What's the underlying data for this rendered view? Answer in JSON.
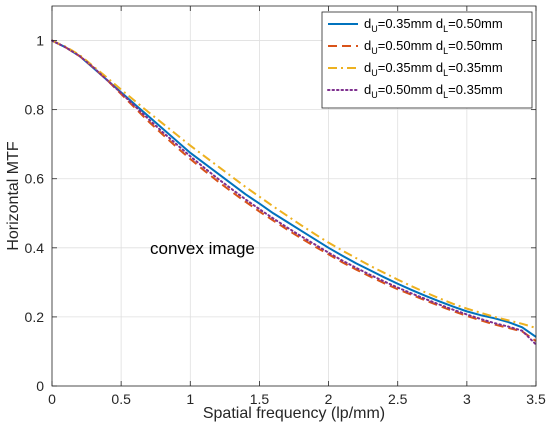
{
  "chart_data": {
    "type": "line",
    "title": "",
    "xlabel": "Spatial frequency (lp/mm)",
    "ylabel": "Horizontal MTF",
    "xlim": [
      0,
      3.5
    ],
    "ylim": [
      0,
      1.1
    ],
    "xticks": [
      "0",
      "0.5",
      "1",
      "1.5",
      "2",
      "2.5",
      "3",
      "3.5"
    ],
    "yticks": [
      "0",
      "0.2",
      "0.4",
      "0.6",
      "0.8",
      "1"
    ],
    "grid": true,
    "legend_position": "top-right",
    "annotation": "convex image",
    "x": [
      0,
      0.1,
      0.2,
      0.3,
      0.4,
      0.5,
      0.6,
      0.7,
      0.8,
      0.9,
      1.0,
      1.1,
      1.2,
      1.3,
      1.4,
      1.5,
      1.6,
      1.7,
      1.8,
      1.9,
      2.0,
      2.1,
      2.2,
      2.3,
      2.4,
      2.5,
      2.6,
      2.7,
      2.8,
      2.9,
      3.0,
      3.1,
      3.2,
      3.3,
      3.4,
      3.5
    ],
    "series": [
      {
        "name": "d_U=0.35mm d_L=0.50mm",
        "legend": {
          "d1": "d",
          "s1": "U",
          "mid": "=0.35mm d",
          "s2": "L",
          "end": "=0.50mm"
        },
        "color": "#0072BD",
        "dash": "solid",
        "values": [
          1.0,
          0.98,
          0.955,
          0.92,
          0.885,
          0.85,
          0.815,
          0.78,
          0.745,
          0.71,
          0.675,
          0.645,
          0.615,
          0.585,
          0.555,
          0.528,
          0.5,
          0.475,
          0.45,
          0.425,
          0.4,
          0.377,
          0.355,
          0.335,
          0.315,
          0.296,
          0.278,
          0.261,
          0.245,
          0.23,
          0.216,
          0.205,
          0.196,
          0.185,
          0.17,
          0.142
        ]
      },
      {
        "name": "d_U=0.50mm d_L=0.50mm",
        "legend": {
          "d1": "d",
          "s1": "U",
          "mid": "=0.50mm d",
          "s2": "L",
          "end": "=0.50mm"
        },
        "color": "#D95319",
        "dash": "dashed",
        "values": [
          1.0,
          0.98,
          0.955,
          0.922,
          0.885,
          0.845,
          0.805,
          0.765,
          0.728,
          0.692,
          0.657,
          0.624,
          0.592,
          0.562,
          0.533,
          0.505,
          0.479,
          0.453,
          0.428,
          0.404,
          0.381,
          0.358,
          0.337,
          0.317,
          0.298,
          0.28,
          0.264,
          0.248,
          0.232,
          0.217,
          0.203,
          0.19,
          0.178,
          0.168,
          0.158,
          0.13
        ]
      },
      {
        "name": "d_U=0.35mm d_L=0.35mm",
        "legend": {
          "d1": "d",
          "s1": "U",
          "mid": "=0.35mm d",
          "s2": "L",
          "end": "=0.35mm"
        },
        "color": "#EDB120",
        "dash": "dashdot",
        "values": [
          1.0,
          0.982,
          0.958,
          0.925,
          0.892,
          0.858,
          0.825,
          0.792,
          0.76,
          0.728,
          0.696,
          0.666,
          0.636,
          0.606,
          0.576,
          0.548,
          0.52,
          0.493,
          0.466,
          0.44,
          0.415,
          0.392,
          0.37,
          0.348,
          0.328,
          0.308,
          0.289,
          0.271,
          0.254,
          0.238,
          0.224,
          0.212,
          0.2,
          0.19,
          0.18,
          0.168
        ]
      },
      {
        "name": "d_U=0.50mm d_L=0.35mm",
        "legend": {
          "d1": "d",
          "s1": "U",
          "mid": "=0.50mm d",
          "s2": "L",
          "end": "=0.35mm"
        },
        "color": "#7E2F8E",
        "dash": "dotted",
        "values": [
          1.0,
          0.98,
          0.955,
          0.922,
          0.885,
          0.848,
          0.81,
          0.772,
          0.735,
          0.7,
          0.665,
          0.632,
          0.6,
          0.57,
          0.54,
          0.512,
          0.485,
          0.459,
          0.434,
          0.41,
          0.386,
          0.363,
          0.342,
          0.322,
          0.303,
          0.285,
          0.268,
          0.252,
          0.236,
          0.221,
          0.207,
          0.194,
          0.182,
          0.172,
          0.16,
          0.12
        ]
      }
    ]
  }
}
